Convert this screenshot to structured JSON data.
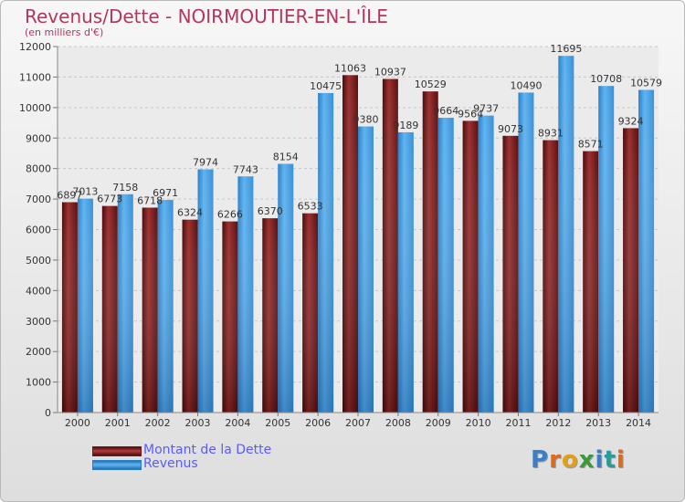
{
  "header": {
    "title": "Revenus/Dette - NOIRMOUTIER-EN-L'ÎLE",
    "subtitle": "(en milliers d'€)"
  },
  "legend": {
    "debt_label": "Montant de la Dette",
    "revenue_label": "Revenus"
  },
  "logo": {
    "text": "Proxiti"
  },
  "colors": {
    "debt": "#7a1e1e",
    "revenue": "#3d9be0",
    "title": "#b5365a",
    "legend_text": "#5a5aff"
  },
  "chart_data": {
    "type": "bar",
    "title": "Revenus/Dette - NOIRMOUTIER-EN-L'ÎLE",
    "subtitle": "(en milliers d'€)",
    "categories": [
      "2000",
      "2001",
      "2002",
      "2003",
      "2004",
      "2005",
      "2006",
      "2007",
      "2008",
      "2009",
      "2010",
      "2011",
      "2012",
      "2013",
      "2014"
    ],
    "series": [
      {
        "name": "Montant de la Dette",
        "values": [
          6897,
          6773,
          6718,
          6324,
          6266,
          6370,
          6533,
          11063,
          10937,
          10529,
          9564,
          9073,
          8931,
          8571,
          9324
        ],
        "labels": [
          "6897",
          "6773",
          "6718",
          "6324",
          "6266",
          "6370",
          "6533",
          "11063",
          "10937",
          "10529",
          "9564",
          "9073",
          "8931",
          "8571",
          "9324"
        ]
      },
      {
        "name": "Revenus",
        "values": [
          7013,
          7158,
          6971,
          7974,
          7743,
          8154,
          10475,
          9380,
          9189,
          9664,
          9737,
          10490,
          11695,
          10708,
          10579
        ],
        "labels": [
          "7013",
          "7158",
          "6971",
          "7974",
          "7743",
          "8154",
          "10475",
          "9380",
          "9189",
          "9664",
          "9737",
          "10490",
          "11695",
          "10708",
          "10579"
        ]
      }
    ],
    "yticks": [
      0,
      1000,
      2000,
      3000,
      4000,
      5000,
      6000,
      7000,
      8000,
      9000,
      10000,
      11000,
      12000
    ],
    "ylim": [
      0,
      12000
    ],
    "grid": true,
    "legend_position": "bottom-left"
  }
}
